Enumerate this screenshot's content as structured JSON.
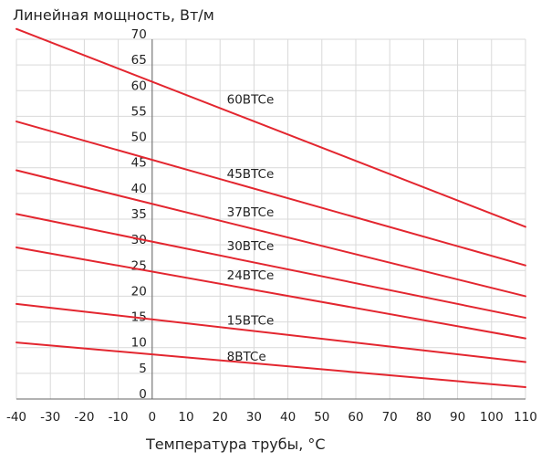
{
  "chart_data": {
    "type": "line",
    "title": "",
    "ylabel": "Линейная мощность, Вт/м",
    "xlabel": "Температура трубы, °C",
    "xlim": [
      -40,
      110
    ],
    "ylim": [
      0,
      70
    ],
    "x_ticks": [
      -40,
      -30,
      -20,
      -10,
      0,
      10,
      20,
      30,
      40,
      50,
      60,
      70,
      80,
      90,
      100,
      110
    ],
    "x_tick_labels": [
      "-40",
      "-30",
      "-20",
      "-10",
      "0",
      "10",
      "20",
      "30",
      "40",
      "50",
      "60",
      "70",
      "80",
      "90",
      "100",
      "110"
    ],
    "y_ticks": [
      0,
      5,
      10,
      15,
      20,
      25,
      30,
      35,
      40,
      45,
      50,
      55,
      60,
      65,
      70
    ],
    "y_tick_labels": [
      "0",
      "5",
      "10",
      "15",
      "20",
      "25",
      "30",
      "35",
      "40",
      "45",
      "50",
      "55",
      "60",
      "65",
      "70"
    ],
    "grid": true,
    "legend": "inline labels on lines",
    "line_color": "#e3262f",
    "grid_color": "#d9d9d9",
    "series": [
      {
        "name": "60BTCe",
        "x": [
          -40,
          110
        ],
        "y": [
          72,
          33.5
        ],
        "label_at": [
          22,
          57.5
        ]
      },
      {
        "name": "45BTCe",
        "x": [
          -40,
          110
        ],
        "y": [
          54,
          26
        ],
        "label_at": [
          22,
          43
        ]
      },
      {
        "name": "37BTCe",
        "x": [
          -40,
          110
        ],
        "y": [
          44.5,
          20
        ],
        "label_at": [
          22,
          35.5
        ]
      },
      {
        "name": "30BTCe",
        "x": [
          -40,
          110
        ],
        "y": [
          36,
          15.8
        ],
        "label_at": [
          22,
          29
        ]
      },
      {
        "name": "24BTCe",
        "x": [
          -40,
          110
        ],
        "y": [
          29.5,
          11.8
        ],
        "label_at": [
          22,
          23.3
        ]
      },
      {
        "name": "15BTCe",
        "x": [
          -40,
          110
        ],
        "y": [
          18.5,
          7.2
        ],
        "label_at": [
          22,
          14.5
        ]
      },
      {
        "name": "8BTCe",
        "x": [
          -40,
          110
        ],
        "y": [
          11,
          2.3
        ],
        "label_at": [
          22,
          7.5
        ]
      }
    ]
  }
}
